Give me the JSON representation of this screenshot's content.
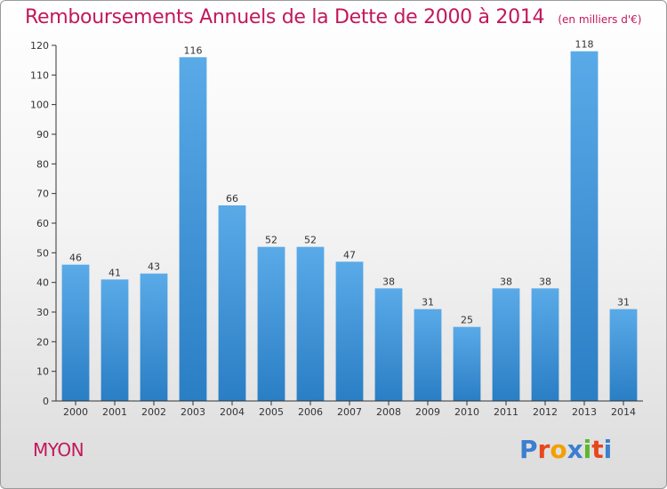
{
  "title": "Remboursements Annuels de la Dette de 2000 à 2014",
  "subtitle": "(en milliers d'€)",
  "commune": "MYON",
  "brand": {
    "text": "Proxiti",
    "letter_colors": [
      "#3a7fd0",
      "#e8461c",
      "#f2a000",
      "#3a7fd0",
      "#5bb82a",
      "#e8461c",
      "#3a7fd0"
    ]
  },
  "colors": {
    "bar_top": "#5aaae8",
    "bar_bottom": "#2a7ec4",
    "title": "#c2185b"
  },
  "chart_data": {
    "type": "bar",
    "title": "Remboursements Annuels de la Dette de 2000 à 2014",
    "subtitle": "(en milliers d'€)",
    "categories": [
      "2000",
      "2001",
      "2002",
      "2003",
      "2004",
      "2005",
      "2006",
      "2007",
      "2008",
      "2009",
      "2010",
      "2011",
      "2012",
      "2013",
      "2014"
    ],
    "values": [
      46,
      41,
      43,
      116,
      66,
      52,
      52,
      47,
      38,
      31,
      25,
      38,
      38,
      118,
      31
    ],
    "ylim": [
      0,
      120
    ],
    "yticks": [
      0,
      10,
      20,
      30,
      40,
      50,
      60,
      70,
      80,
      90,
      100,
      110,
      120
    ],
    "grid": false,
    "legend": "none"
  }
}
